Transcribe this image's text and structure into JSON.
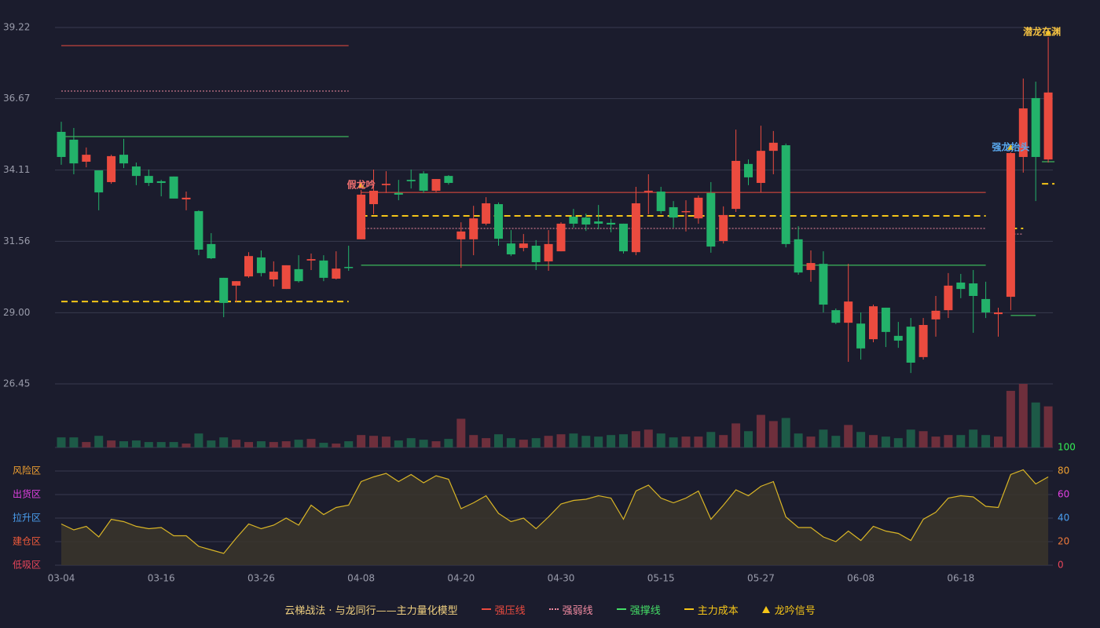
{
  "chart_data": {
    "type": "candlestick",
    "categories": [
      "03-04",
      null,
      null,
      null,
      null,
      null,
      null,
      null,
      "03-16",
      null,
      null,
      null,
      null,
      null,
      null,
      null,
      "03-26",
      null,
      null,
      null,
      null,
      null,
      null,
      null,
      "04-08",
      null,
      null,
      null,
      null,
      null,
      null,
      null,
      "04-20",
      null,
      null,
      null,
      null,
      null,
      null,
      null,
      "04-30",
      null,
      null,
      null,
      null,
      null,
      null,
      null,
      "05-15",
      null,
      null,
      null,
      null,
      null,
      null,
      null,
      "05-27",
      null,
      null,
      null,
      null,
      null,
      null,
      null,
      "06-08",
      null,
      null,
      null,
      null,
      null,
      null,
      null,
      "06-18",
      null,
      null,
      null,
      null,
      null,
      null,
      null
    ],
    "open": [
      35.48,
      35.2,
      34.41,
      34.1,
      33.68,
      34.66,
      34.24,
      33.9,
      33.71,
      33.88,
      33.06,
      32.64,
      31.46,
      30.25,
      29.97,
      30.3,
      30.98,
      30.19,
      29.85,
      30.56,
      30.87,
      30.87,
      30.22,
      30.64,
      31.63,
      32.89,
      33.57,
      33.29,
      33.76,
      33.99,
      33.37,
      33.9,
      31.63,
      31.63,
      32.19,
      32.89,
      31.48,
      31.32,
      31.4,
      30.84,
      31.2,
      32.44,
      32.41,
      32.27,
      32.22,
      32.19,
      31.17,
      33.34,
      33.34,
      32.78,
      32.61,
      32.38,
      33.29,
      31.57,
      32.72,
      34.33,
      33.65,
      34.8,
      35.0,
      31.63,
      30.53,
      30.75,
      29.09,
      28.64,
      28.61,
      28.05,
      29.18,
      28.17,
      28.5,
      27.41,
      28.76,
      29.09,
      30.08,
      30.05,
      29.49,
      28.95,
      29.57,
      34.58,
      36.69,
      34.49
    ],
    "high": [
      35.84,
      35.62,
      34.92,
      34.1,
      34.66,
      35.23,
      34.38,
      34.13,
      33.76,
      33.88,
      33.34,
      32.67,
      31.85,
      30.25,
      30.13,
      31.17,
      31.23,
      30.84,
      30.7,
      31.06,
      31.12,
      31.06,
      31.2,
      31.4,
      33.4,
      34.13,
      34.07,
      33.76,
      34.13,
      34.07,
      33.79,
      33.93,
      32.24,
      32.83,
      33.14,
      32.95,
      31.96,
      31.82,
      31.6,
      31.96,
      32.24,
      32.72,
      32.55,
      32.86,
      32.36,
      32.19,
      33.51,
      33.96,
      33.51,
      33.0,
      33.03,
      33.2,
      33.68,
      32.81,
      35.56,
      34.49,
      35.7,
      35.51,
      35.06,
      32.1,
      31.23,
      31.2,
      29.15,
      30.75,
      29.01,
      29.29,
      29.18,
      28.67,
      28.81,
      28.81,
      29.6,
      30.42,
      30.39,
      30.53,
      30.11,
      29.18,
      34.75,
      37.39,
      37.28,
      38.88
    ],
    "low": [
      34.3,
      33.96,
      34.21,
      32.67,
      33.62,
      34.18,
      33.57,
      33.54,
      33.17,
      33.09,
      32.67,
      31.06,
      30.92,
      28.84,
      29.38,
      30.25,
      30.3,
      29.94,
      29.85,
      30.08,
      30.53,
      30.13,
      30.19,
      30.5,
      31.63,
      32.53,
      33.29,
      33.03,
      33.45,
      33.29,
      33.31,
      33.59,
      30.61,
      31.06,
      32.13,
      31.4,
      31.03,
      31.2,
      30.53,
      30.5,
      31.2,
      32.05,
      31.93,
      31.99,
      31.88,
      31.12,
      31.06,
      32.53,
      32.55,
      32.05,
      31.91,
      32.19,
      31.15,
      31.48,
      32.61,
      33.57,
      33.31,
      33.96,
      31.34,
      30.36,
      30.11,
      29.01,
      28.59,
      27.24,
      27.32,
      27.94,
      27.77,
      27.74,
      26.84,
      27.32,
      28.14,
      28.81,
      29.52,
      28.28,
      28.81,
      28.14,
      29.09,
      34.02,
      33.0,
      34.38
    ],
    "close": [
      34.58,
      34.35,
      34.66,
      33.31,
      34.61,
      34.35,
      33.9,
      33.65,
      33.65,
      33.09,
      33.12,
      31.26,
      30.95,
      29.35,
      30.13,
      31.03,
      30.42,
      30.47,
      30.7,
      30.13,
      30.92,
      30.25,
      30.58,
      30.61,
      33.23,
      33.37,
      33.62,
      33.23,
      33.71,
      33.37,
      33.79,
      33.65,
      31.91,
      32.38,
      32.92,
      31.65,
      31.09,
      31.48,
      30.81,
      31.46,
      32.19,
      32.19,
      32.16,
      32.19,
      32.16,
      31.2,
      32.92,
      33.37,
      32.64,
      32.41,
      32.64,
      33.12,
      31.37,
      32.5,
      34.44,
      33.85,
      34.8,
      35.09,
      31.46,
      30.44,
      30.78,
      29.29,
      28.64,
      29.4,
      27.72,
      29.23,
      28.31,
      28.0,
      27.21,
      28.56,
      29.07,
      29.97,
      29.85,
      29.6,
      29.01,
      29.01,
      34.72,
      36.32,
      34.58,
      36.89
    ],
    "volume": [
      13,
      13,
      7,
      15,
      9,
      8,
      9,
      7,
      7,
      7,
      5,
      18,
      9,
      13,
      10,
      7,
      8,
      7,
      8,
      10,
      11,
      6,
      5,
      8,
      16,
      15,
      14,
      9,
      12,
      10,
      8,
      11,
      37,
      16,
      12,
      17,
      12,
      10,
      12,
      15,
      17,
      18,
      15,
      14,
      16,
      17,
      21,
      23,
      18,
      13,
      14,
      14,
      20,
      16,
      31,
      21,
      42,
      34,
      38,
      18,
      14,
      23,
      15,
      29,
      20,
      16,
      14,
      12,
      23,
      21,
      14,
      16,
      16,
      23,
      16,
      14,
      73,
      82,
      58,
      53
    ],
    "volume_ylim": [
      0,
      82
    ],
    "indicator": [
      35,
      30,
      33,
      24,
      39,
      37,
      33,
      31,
      32,
      25,
      25,
      16,
      13,
      10,
      23,
      35,
      31,
      34,
      40,
      34,
      51,
      43,
      49,
      51,
      71,
      75,
      78,
      71,
      77,
      70,
      76,
      73,
      48,
      53,
      59,
      44,
      37,
      40,
      31,
      41,
      52,
      55,
      56,
      59,
      57,
      39,
      63,
      68,
      57,
      53,
      57,
      63,
      39,
      51,
      64,
      59,
      67,
      71,
      41,
      32,
      32,
      24,
      20,
      29,
      21,
      33,
      29,
      27,
      21,
      39,
      45,
      57,
      59,
      58,
      50,
      49,
      77,
      81,
      69,
      75
    ],
    "indicator_ylim": [
      0,
      100
    ],
    "indicator_yticks": [
      0,
      20,
      40,
      60,
      80,
      100
    ],
    "indicator_ytick_colors": [
      "#e8455a",
      "#f07a3a",
      "#4a9ff0",
      "#e040e0",
      "#f0a030",
      "#33ee55"
    ],
    "indicator_color": "#d9b526",
    "indicator_fill": "#3a352c",
    "zones": [
      {
        "name": "风险区",
        "value": 80,
        "color": "#f0a030"
      },
      {
        "name": "出货区",
        "value": 60,
        "color": "#e040e0"
      },
      {
        "name": "拉升区",
        "value": 40,
        "color": "#4a9ff0"
      },
      {
        "name": "建仓区",
        "value": 20,
        "color": "#f05a3a"
      },
      {
        "name": "低吸区",
        "value": 0,
        "color": "#e8455a"
      }
    ],
    "ylim": [
      26.45,
      39.22
    ],
    "yticks": [
      26.45,
      {
        "value": 29,
        "label": "29.00"
      },
      31.56,
      34.11,
      36.67,
      39.22
    ],
    "grid": true,
    "up_color": "#eb4b3f",
    "down_color": "#23b26a",
    "up_volume_color": "#6e2f3c",
    "down_volume_color": "#1d5a47",
    "levels": [
      {
        "name": "强压线",
        "color": "#eb4b3f",
        "style": "solid",
        "segments": [
          {
            "from": 0,
            "to": 23,
            "value": 38.57
          },
          {
            "from": 24,
            "to": 74,
            "value": 33.31
          }
        ]
      },
      {
        "name": "强弱线",
        "color": "#f08aa0",
        "style": "dotted",
        "segments": [
          {
            "from": 0,
            "to": 23,
            "value": 36.94
          },
          {
            "from": 24,
            "to": 74,
            "value": 32.02
          },
          {
            "from": 76,
            "to": 77,
            "value": 31.82
          }
        ]
      },
      {
        "name": "强撑线",
        "color": "#44dd66",
        "style": "solid",
        "segments": [
          {
            "from": 0,
            "to": 23,
            "value": 35.31
          },
          {
            "from": 24,
            "to": 74,
            "value": 30.7
          },
          {
            "from": 76,
            "to": 78,
            "value": 28.9
          },
          {
            "from": 79,
            "to": 79,
            "value": 34.41
          }
        ]
      },
      {
        "name": "主力成本",
        "color": "#f5c518",
        "style": "dashed",
        "segments": [
          {
            "from": 0,
            "to": 23,
            "value": 29.4
          },
          {
            "from": 24,
            "to": 74,
            "value": 32.47
          },
          {
            "from": 76,
            "to": 77,
            "value": 32.02
          },
          {
            "from": 79,
            "to": 79,
            "value": 33.62
          }
        ]
      }
    ],
    "signal_name": "龙吟信号",
    "signal_color": "#f5c518",
    "signals": [
      {
        "label": "假龙吟",
        "index": 24,
        "value": 33.4,
        "color": "#f07070"
      },
      {
        "label": "强龙抬头",
        "index": 76,
        "value": 34.75,
        "color": "#5aaaf0"
      },
      {
        "label": "潜龙在渊",
        "index": 79,
        "value": 38.88,
        "color": "#f5c242"
      }
    ],
    "legend_title": "云梯战法 · 与龙同行——主力量化模型",
    "legend_title_color": "#f0d080"
  }
}
